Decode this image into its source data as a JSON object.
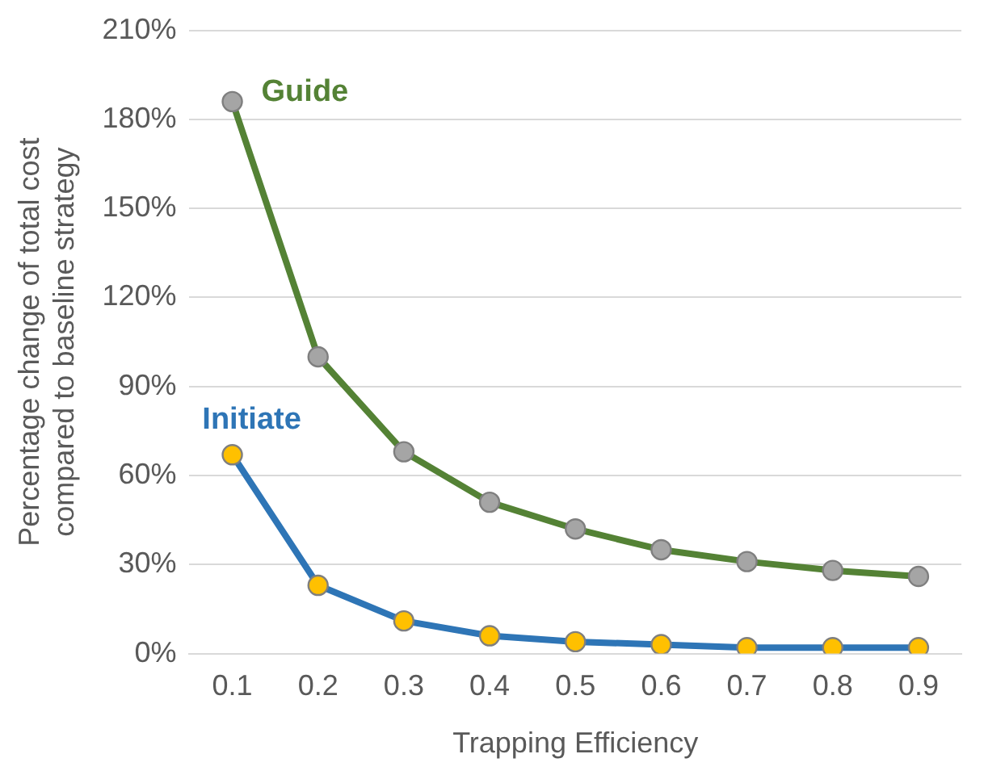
{
  "chart_data": {
    "type": "line",
    "xlabel": "Trapping Efficiency",
    "ylabel": "Percentage change of total cost\ncompared to baseline strategy",
    "categories": [
      "0.1",
      "0.2",
      "0.3",
      "0.4",
      "0.5",
      "0.6",
      "0.7",
      "0.8",
      "0.9"
    ],
    "series": [
      {
        "name": "Guide",
        "color": "#548235",
        "colors": [
          "#a5a5a5",
          "#a5a5a5",
          "#a5a5a5",
          "#a5a5a5",
          "#a5a5a5",
          "#a5a5a5",
          "#a5a5a5",
          "#a5a5a5",
          "#a5a5a5"
        ],
        "values": [
          186,
          100,
          68,
          51,
          42,
          35,
          31,
          28,
          26
        ]
      },
      {
        "name": "Initiate",
        "color": "#2e75b6",
        "colors": [
          "#ffc000",
          "#ffc000",
          "#ffc000",
          "#ffc000",
          "#ffc000",
          "#ffc000",
          "#ffc000",
          "#ffc000",
          "#ffc000"
        ],
        "values": [
          67,
          23,
          11,
          6,
          4,
          3,
          2,
          2,
          2
        ]
      }
    ],
    "ylim": [
      0,
      210
    ],
    "yticks": [
      {
        "value": 0,
        "label": "0%"
      },
      {
        "value": 30,
        "label": "30%"
      },
      {
        "value": 60,
        "label": "60%"
      },
      {
        "value": 90,
        "label": "90%"
      },
      {
        "value": 120,
        "label": "120%"
      },
      {
        "value": 150,
        "label": "150%"
      },
      {
        "value": 180,
        "label": "180%"
      },
      {
        "value": 210,
        "label": "210%"
      }
    ],
    "grid": "y",
    "legend": false,
    "marker": "circle",
    "line_style": "solid"
  }
}
